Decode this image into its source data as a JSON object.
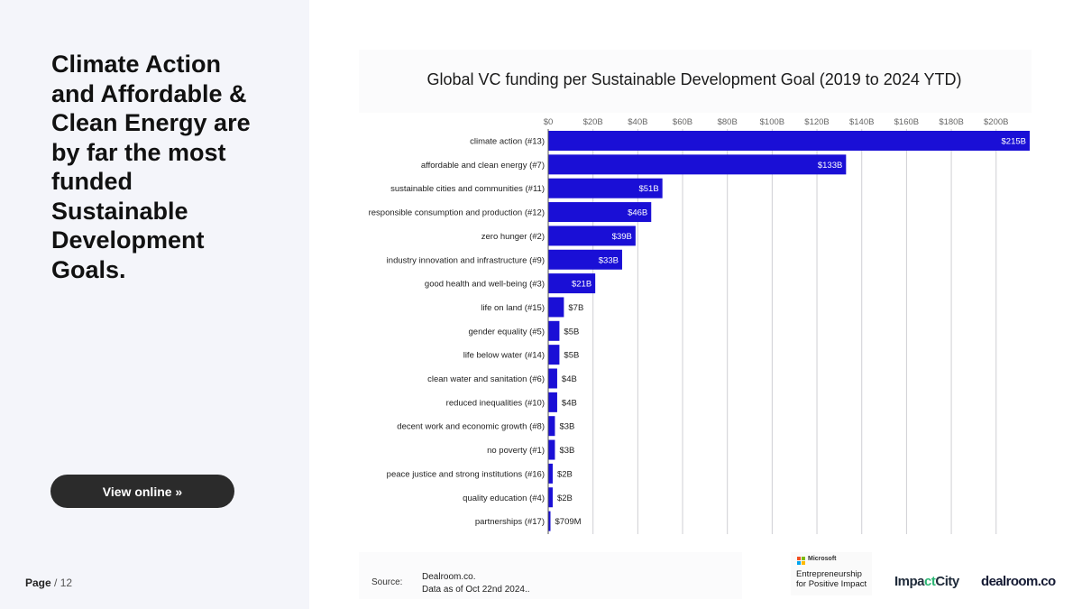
{
  "headline": "Climate Action and Affordable & Clean Energy are by far the most funded Sustainable Development Goals.",
  "view_button": "View online »",
  "page": {
    "label": "Page",
    "separator": "/",
    "total": "12"
  },
  "colors": {
    "bar": "#1a0fd6",
    "sidebar": "#f4f5fa",
    "button": "#2b2b2b"
  },
  "chart_data": {
    "type": "bar",
    "orientation": "horizontal",
    "title": "Global VC funding per Sustainable Development Goal (2019 to 2024 YTD)",
    "xlabel": "",
    "ylabel": "",
    "xlim": [
      0,
      215
    ],
    "unit": "$B",
    "ticks": [
      0,
      20,
      40,
      60,
      80,
      100,
      120,
      140,
      160,
      180,
      200
    ],
    "tick_labels": [
      "$0",
      "$20B",
      "$40B",
      "$60B",
      "$80B",
      "$100B",
      "$120B",
      "$140B",
      "$160B",
      "$180B",
      "$200B"
    ],
    "grid": true,
    "categories": [
      "climate action (#13)",
      "affordable and clean energy (#7)",
      "sustainable cities and communities (#11)",
      "responsible consumption and production (#12)",
      "zero hunger (#2)",
      "industry innovation and infrastructure (#9)",
      "good health and well-being (#3)",
      "life on land (#15)",
      "gender equality (#5)",
      "life below water (#14)",
      "clean water and sanitation (#6)",
      "reduced inequalities (#10)",
      "decent work and economic growth (#8)",
      "no poverty (#1)",
      "peace justice and strong institutions (#16)",
      "quality education (#4)",
      "partnerships (#17)"
    ],
    "values": [
      215,
      133,
      51,
      46,
      39,
      33,
      21,
      7,
      5,
      5,
      4,
      4,
      3,
      3,
      2,
      2,
      0.709
    ],
    "value_labels": [
      "$215B",
      "$133B",
      "$51B",
      "$46B",
      "$39B",
      "$33B",
      "$21B",
      "$7B",
      "$5B",
      "$5B",
      "$4B",
      "$4B",
      "$3B",
      "$3B",
      "$2B",
      "$2B",
      "$709M"
    ]
  },
  "source": {
    "label": "Source:",
    "line1": "Dealroom.co.",
    "line2": "Data as of Oct 22nd 2024.."
  },
  "logos": {
    "microsoft_name": "Microsoft",
    "microsoft_tag_line1": "Entrepreneurship",
    "microsoft_tag_line2": "for Positive Impact",
    "impactcity_pre": "Impa",
    "impactcity_mid": "ct",
    "impactcity_post": "City",
    "dealroom": "dealroom.co",
    "ms_square_colors": [
      "#f25022",
      "#7fba00",
      "#00a4ef",
      "#ffb900"
    ]
  }
}
